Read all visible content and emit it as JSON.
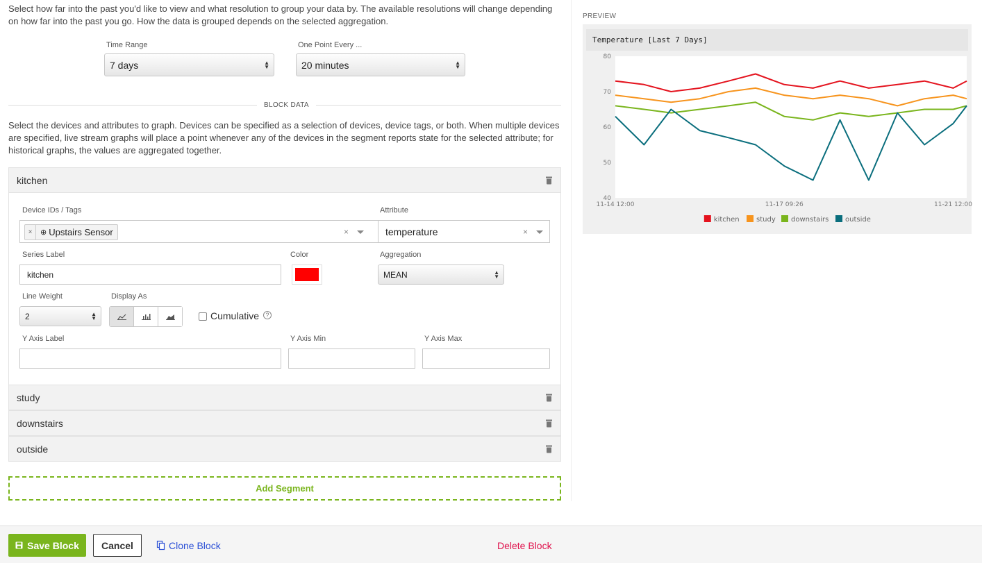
{
  "intro_text": "Select how far into the past you'd like to view and what resolution to group your data by. The available resolutions will change depending on how far into the past you go. How the data is grouped depends on the selected aggregation.",
  "time_range": {
    "label": "Time Range",
    "value": "7 days"
  },
  "resolution": {
    "label": "One Point Every ...",
    "value": "20 minutes"
  },
  "block_data_heading": "BLOCK DATA",
  "devices_text": "Select the devices and attributes to graph. Devices can be specified as a selection of devices, device tags, or both. When multiple devices are specified, live stream graphs will place a point whenever any of the devices in the segment reports state for the selected attribute; for historical graphs, the values are aggregated together.",
  "segments": [
    {
      "name": "kitchen"
    },
    {
      "name": "study"
    },
    {
      "name": "downstairs"
    },
    {
      "name": "outside"
    }
  ],
  "segment_form": {
    "device_ids_label": "Device IDs / Tags",
    "device_tag": "Upstairs Sensor",
    "attribute_label": "Attribute",
    "attribute_value": "temperature",
    "series_label_label": "Series Label",
    "series_label_value": "kitchen",
    "color_label": "Color",
    "color_value": "#ff0000",
    "aggregation_label": "Aggregation",
    "aggregation_value": "MEAN",
    "line_weight_label": "Line Weight",
    "line_weight_value": "2",
    "display_as_label": "Display As",
    "display_as_selected": "line",
    "cumulative_label": "Cumulative",
    "y_axis_label_label": "Y Axis Label",
    "y_axis_min_label": "Y Axis Min",
    "y_axis_max_label": "Y Axis Max"
  },
  "add_segment_label": "Add Segment",
  "footer": {
    "save_label": "Save Block",
    "cancel_label": "Cancel",
    "clone_label": "Clone Block",
    "delete_label": "Delete Block"
  },
  "preview": {
    "heading": "PREVIEW",
    "chart_title": "Temperature [Last 7 Days]"
  },
  "chart_data": {
    "type": "line",
    "title": "Temperature [Last 7 Days]",
    "xlabel": "",
    "ylabel": "",
    "ylim": [
      40,
      80
    ],
    "yticks": [
      40,
      50,
      60,
      70,
      80
    ],
    "xtick_labels": [
      "11-14 12:00",
      "11-17 09:26",
      "11-21 12:00"
    ],
    "xtick_positions": [
      0,
      1,
      2
    ],
    "x": [
      0,
      0.17,
      0.33,
      0.5,
      0.67,
      0.83,
      1.0,
      1.17,
      1.33,
      1.5,
      1.67,
      1.83,
      2.0,
      2.08
    ],
    "legend_position": "bottom",
    "series": [
      {
        "name": "kitchen",
        "color": "#e4131e",
        "values": [
          73,
          72,
          70,
          71,
          73,
          75,
          72,
          71,
          73,
          71,
          72,
          73,
          71,
          73
        ]
      },
      {
        "name": "study",
        "color": "#f7941d",
        "values": [
          69,
          68,
          67,
          68,
          70,
          71,
          69,
          68,
          69,
          68,
          66,
          68,
          69,
          68
        ]
      },
      {
        "name": "downstairs",
        "color": "#7ab51d",
        "values": [
          66,
          65,
          64,
          65,
          66,
          67,
          63,
          62,
          64,
          63,
          64,
          65,
          65,
          66
        ]
      },
      {
        "name": "outside",
        "color": "#0a6e7d",
        "values": [
          63,
          55,
          65,
          59,
          57,
          55,
          49,
          45,
          62,
          45,
          64,
          55,
          61,
          66
        ]
      }
    ]
  }
}
